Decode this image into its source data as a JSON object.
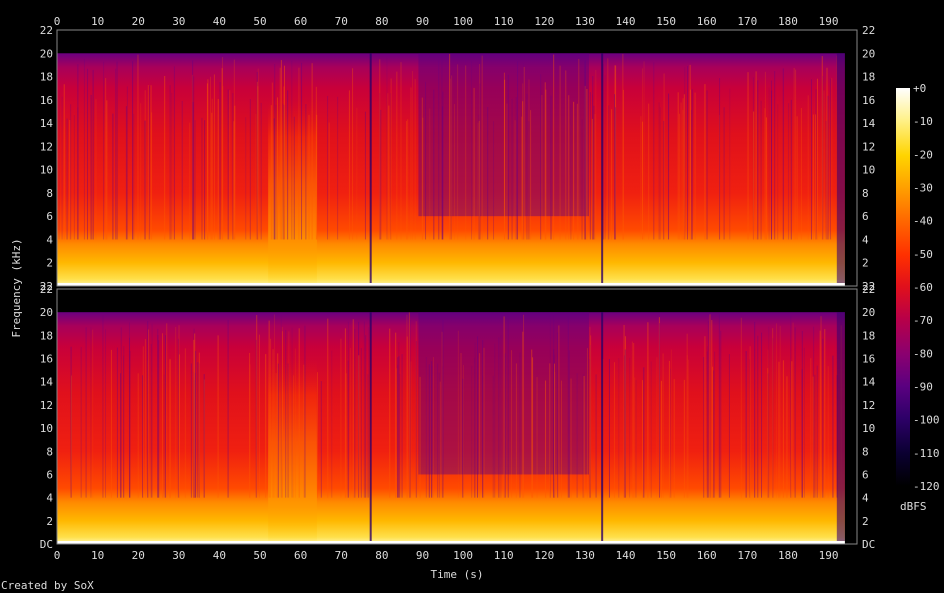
{
  "chart_data": {
    "type": "heatmap",
    "subtype": "spectrogram",
    "xlabel": "Time (s)",
    "ylabel": "Frequency (kHz)",
    "x_ticks": [
      0,
      10,
      20,
      30,
      40,
      50,
      60,
      70,
      80,
      90,
      100,
      110,
      120,
      130,
      140,
      150,
      160,
      170,
      180,
      190
    ],
    "y_ticks": [
      "DC",
      "2",
      "4",
      "6",
      "8",
      "10",
      "12",
      "14",
      "16",
      "18",
      "20",
      "22"
    ],
    "xlim": [
      0,
      197
    ],
    "ylim_khz": [
      0,
      22
    ],
    "channels": 2,
    "colorbar": {
      "label": "dBFS",
      "ticks": [
        "+0",
        "-10",
        "-20",
        "-30",
        "-40",
        "-50",
        "-60",
        "-70",
        "-80",
        "-90",
        "-100",
        "-110",
        "-120"
      ],
      "range": [
        -120,
        0
      ]
    },
    "credit": "Created by SoX",
    "audio_end_s": 194,
    "events": [
      {
        "time_s": 52,
        "note": "broadband burst to ~16 kHz"
      },
      {
        "time_s": 64,
        "note": "burst ends"
      },
      {
        "time_s": 77,
        "note": "drop-out line"
      },
      {
        "time_s": 134,
        "note": "drop-out line"
      }
    ],
    "colors": {
      "background": "#000000",
      "scale": [
        "#000000",
        "#0a0030",
        "#2d0068",
        "#5a0080",
        "#8a0070",
        "#b80048",
        "#e0101c",
        "#ff3000",
        "#ff6a00",
        "#ffa000",
        "#ffd400",
        "#fff18a",
        "#ffffff"
      ]
    }
  }
}
